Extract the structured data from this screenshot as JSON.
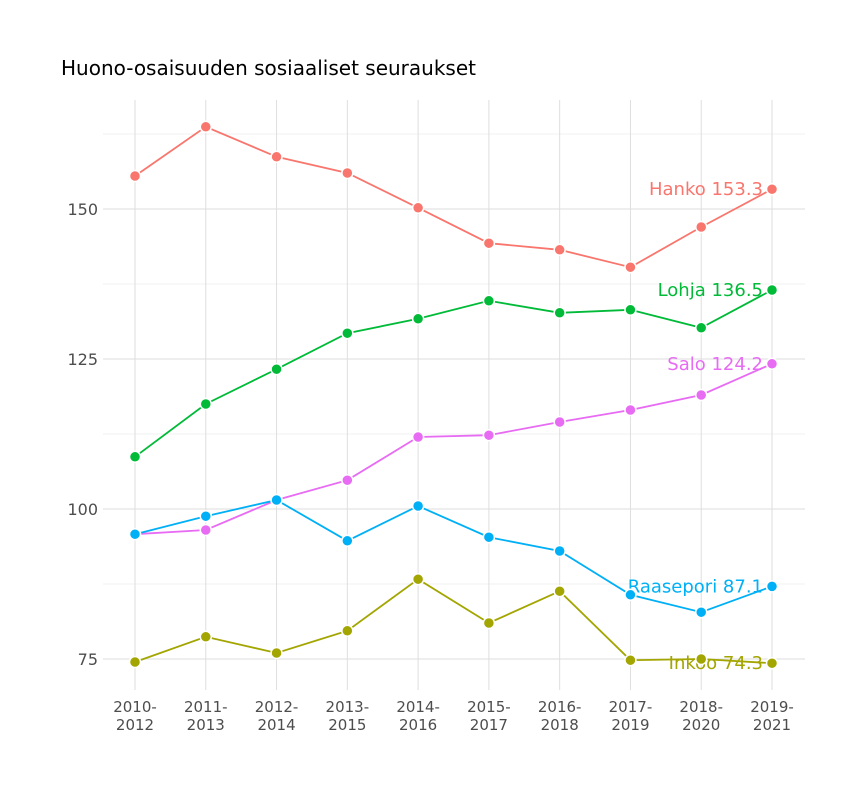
{
  "chart_data": {
    "type": "line",
    "title": "Huono-osaisuuden sosiaaliset seuraukset",
    "xlabel": "",
    "ylabel": "",
    "categories": [
      "2010-2012",
      "2011-2013",
      "2012-2014",
      "2013-2015",
      "2014-2016",
      "2015-2017",
      "2016-2018",
      "2017-2019",
      "2018-2020",
      "2019-2021"
    ],
    "yticks": [
      75,
      100,
      125,
      150
    ],
    "ylim": [
      68.5,
      168
    ],
    "grid": true,
    "legend": "none",
    "series": [
      {
        "name": "Hanko",
        "color": "#F8766D",
        "end_label": "Hanko 153.3",
        "values": [
          155.5,
          163.7,
          158.7,
          156.0,
          150.2,
          144.3,
          143.2,
          140.3,
          147.0,
          153.3
        ]
      },
      {
        "name": "Lohja",
        "color": "#00BA38",
        "end_label": "Lohja 136.5",
        "values": [
          108.7,
          117.5,
          123.3,
          129.3,
          131.7,
          134.7,
          132.7,
          133.2,
          130.2,
          136.5
        ]
      },
      {
        "name": "Salo",
        "color": "#E76BF3",
        "end_label": "Salo 124.2",
        "values": [
          95.8,
          96.5,
          101.5,
          104.8,
          112.0,
          112.3,
          114.5,
          116.5,
          119.0,
          124.2
        ]
      },
      {
        "name": "Raasepori",
        "color": "#00B0F6",
        "end_label": "Raasepori 87.1",
        "values": [
          95.8,
          98.8,
          101.5,
          94.7,
          100.5,
          95.3,
          93.0,
          85.7,
          82.8,
          87.1
        ]
      },
      {
        "name": "Inkoo",
        "color": "#A3A500",
        "end_label": "Inkoo 74.3",
        "values": [
          74.5,
          78.7,
          76.0,
          79.7,
          88.3,
          81.0,
          86.3,
          74.8,
          75.0,
          74.3
        ]
      }
    ]
  }
}
